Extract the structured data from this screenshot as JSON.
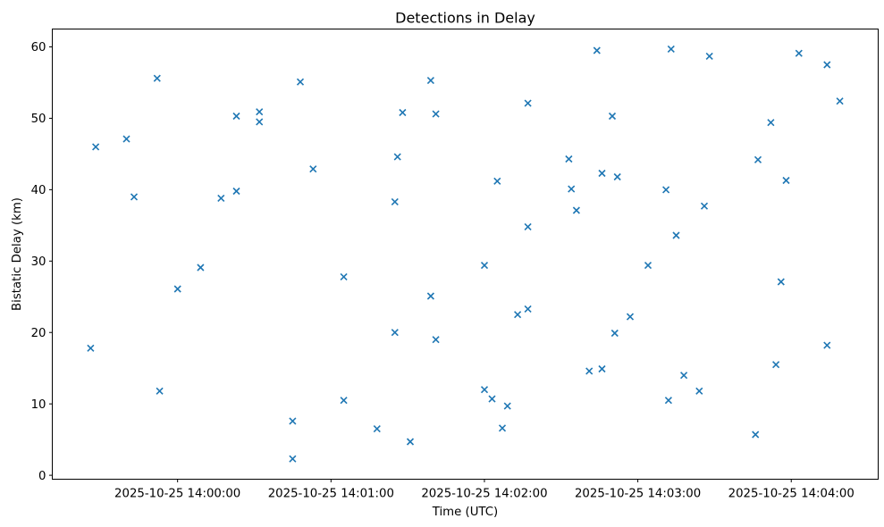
{
  "chart_data": {
    "type": "scatter",
    "title": "Detections in Delay",
    "xlabel": "Time (UTC)",
    "ylabel": "Bistatic Delay (km)",
    "marker": "x",
    "marker_color": "#1f77b4",
    "axis_color": "#000000",
    "background_color": "#ffffff",
    "grid": false,
    "legend": "none",
    "x_tick_labels": [
      "2025-10-25 14:00:00",
      "2025-10-25 14:01:00",
      "2025-10-25 14:02:00",
      "2025-10-25 14:03:00",
      "2025-10-25 14:04:00"
    ],
    "y_ticks": [
      0,
      10,
      20,
      30,
      40,
      50,
      60
    ],
    "xlim": [
      "2025-10-25 13:59:11",
      "2025-10-25 14:04:34"
    ],
    "ylim": [
      -0.55,
      62.5
    ],
    "points": [
      {
        "time": "2025-10-25 13:59:26",
        "delay_km": 17.8
      },
      {
        "time": "2025-10-25 13:59:28",
        "delay_km": 46.0
      },
      {
        "time": "2025-10-25 13:59:40",
        "delay_km": 47.1
      },
      {
        "time": "2025-10-25 13:59:43",
        "delay_km": 39.0
      },
      {
        "time": "2025-10-25 13:59:52",
        "delay_km": 55.6
      },
      {
        "time": "2025-10-25 13:59:53",
        "delay_km": 11.8
      },
      {
        "time": "2025-10-25 14:00:00",
        "delay_km": 26.1
      },
      {
        "time": "2025-10-25 14:00:09",
        "delay_km": 29.1
      },
      {
        "time": "2025-10-25 14:00:17",
        "delay_km": 38.8
      },
      {
        "time": "2025-10-25 14:00:23",
        "delay_km": 50.3
      },
      {
        "time": "2025-10-25 14:00:23",
        "delay_km": 39.8
      },
      {
        "time": "2025-10-25 14:00:32",
        "delay_km": 50.9
      },
      {
        "time": "2025-10-25 14:00:32",
        "delay_km": 49.5
      },
      {
        "time": "2025-10-25 14:00:45",
        "delay_km": 2.3
      },
      {
        "time": "2025-10-25 14:00:45",
        "delay_km": 7.6
      },
      {
        "time": "2025-10-25 14:00:48",
        "delay_km": 55.1
      },
      {
        "time": "2025-10-25 14:00:53",
        "delay_km": 42.9
      },
      {
        "time": "2025-10-25 14:01:05",
        "delay_km": 27.8
      },
      {
        "time": "2025-10-25 14:01:05",
        "delay_km": 10.5
      },
      {
        "time": "2025-10-25 14:01:18",
        "delay_km": 6.5
      },
      {
        "time": "2025-10-25 14:01:25",
        "delay_km": 38.3
      },
      {
        "time": "2025-10-25 14:01:25",
        "delay_km": 20.0
      },
      {
        "time": "2025-10-25 14:01:26",
        "delay_km": 44.6
      },
      {
        "time": "2025-10-25 14:01:28",
        "delay_km": 50.8
      },
      {
        "time": "2025-10-25 14:01:31",
        "delay_km": 4.7
      },
      {
        "time": "2025-10-25 14:01:39",
        "delay_km": 55.3
      },
      {
        "time": "2025-10-25 14:01:39",
        "delay_km": 25.1
      },
      {
        "time": "2025-10-25 14:01:41",
        "delay_km": 50.6
      },
      {
        "time": "2025-10-25 14:01:41",
        "delay_km": 19.0
      },
      {
        "time": "2025-10-25 14:02:00",
        "delay_km": 12.0
      },
      {
        "time": "2025-10-25 14:02:00",
        "delay_km": 29.4
      },
      {
        "time": "2025-10-25 14:02:03",
        "delay_km": 10.7
      },
      {
        "time": "2025-10-25 14:02:05",
        "delay_km": 41.2
      },
      {
        "time": "2025-10-25 14:02:07",
        "delay_km": 6.6
      },
      {
        "time": "2025-10-25 14:02:09",
        "delay_km": 9.7
      },
      {
        "time": "2025-10-25 14:02:13",
        "delay_km": 22.5
      },
      {
        "time": "2025-10-25 14:02:17",
        "delay_km": 52.1
      },
      {
        "time": "2025-10-25 14:02:17",
        "delay_km": 34.8
      },
      {
        "time": "2025-10-25 14:02:17",
        "delay_km": 23.3
      },
      {
        "time": "2025-10-25 14:02:33",
        "delay_km": 44.3
      },
      {
        "time": "2025-10-25 14:02:34",
        "delay_km": 40.1
      },
      {
        "time": "2025-10-25 14:02:36",
        "delay_km": 37.1
      },
      {
        "time": "2025-10-25 14:02:41",
        "delay_km": 14.6
      },
      {
        "time": "2025-10-25 14:02:44",
        "delay_km": 59.5
      },
      {
        "time": "2025-10-25 14:02:46",
        "delay_km": 42.3
      },
      {
        "time": "2025-10-25 14:02:46",
        "delay_km": 14.9
      },
      {
        "time": "2025-10-25 14:02:50",
        "delay_km": 50.3
      },
      {
        "time": "2025-10-25 14:02:51",
        "delay_km": 19.9
      },
      {
        "time": "2025-10-25 14:02:52",
        "delay_km": 41.8
      },
      {
        "time": "2025-10-25 14:02:57",
        "delay_km": 22.2
      },
      {
        "time": "2025-10-25 14:03:04",
        "delay_km": 29.4
      },
      {
        "time": "2025-10-25 14:03:11",
        "delay_km": 40.0
      },
      {
        "time": "2025-10-25 14:03:12",
        "delay_km": 10.5
      },
      {
        "time": "2025-10-25 14:03:13",
        "delay_km": 59.7
      },
      {
        "time": "2025-10-25 14:03:15",
        "delay_km": 33.6
      },
      {
        "time": "2025-10-25 14:03:18",
        "delay_km": 14.0
      },
      {
        "time": "2025-10-25 14:03:24",
        "delay_km": 11.8
      },
      {
        "time": "2025-10-25 14:03:26",
        "delay_km": 37.7
      },
      {
        "time": "2025-10-25 14:03:28",
        "delay_km": 58.7
      },
      {
        "time": "2025-10-25 14:03:46",
        "delay_km": 5.7
      },
      {
        "time": "2025-10-25 14:03:47",
        "delay_km": 44.2
      },
      {
        "time": "2025-10-25 14:03:52",
        "delay_km": 49.4
      },
      {
        "time": "2025-10-25 14:03:54",
        "delay_km": 15.5
      },
      {
        "time": "2025-10-25 14:03:56",
        "delay_km": 27.1
      },
      {
        "time": "2025-10-25 14:03:58",
        "delay_km": 41.3
      },
      {
        "time": "2025-10-25 14:04:03",
        "delay_km": 59.1
      },
      {
        "time": "2025-10-25 14:04:14",
        "delay_km": 57.5
      },
      {
        "time": "2025-10-25 14:04:14",
        "delay_km": 18.2
      },
      {
        "time": "2025-10-25 14:04:19",
        "delay_km": 52.4
      }
    ]
  }
}
